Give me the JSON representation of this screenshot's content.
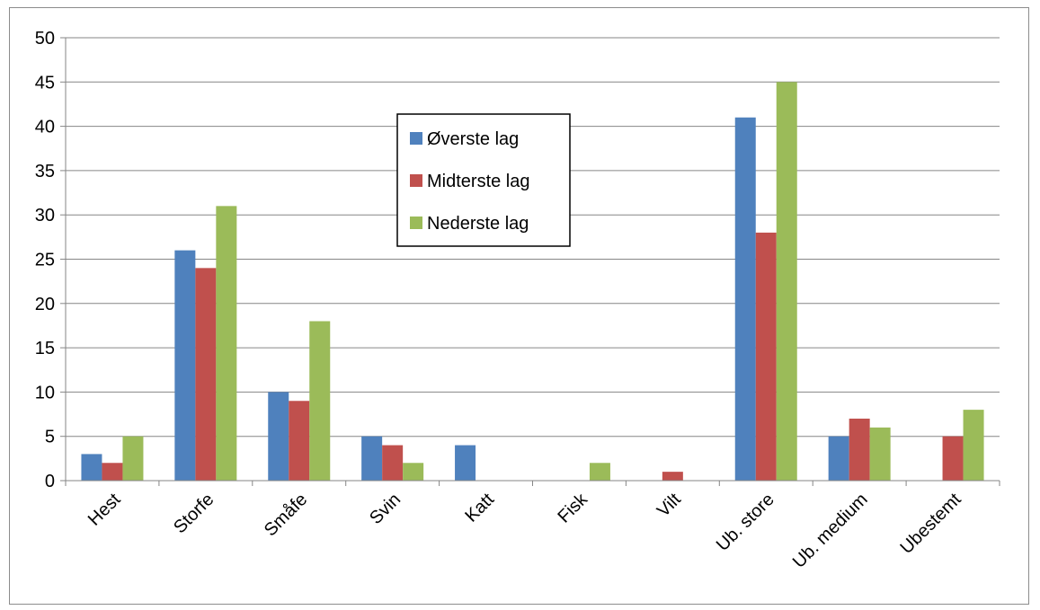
{
  "chart_data": {
    "type": "bar",
    "categories": [
      "Hest",
      "Storfe",
      "Småfe",
      "Svin",
      "Katt",
      "Fisk",
      "Vilt",
      "Ub. store",
      "Ub. medium",
      "Ubestemt"
    ],
    "series": [
      {
        "name": "Øverste lag",
        "color": "#4f81bd",
        "values": [
          3,
          26,
          10,
          5,
          4,
          0,
          0,
          41,
          5,
          0
        ]
      },
      {
        "name": "Midterste lag",
        "color": "#c0504d",
        "values": [
          2,
          24,
          9,
          4,
          0,
          0,
          1,
          28,
          7,
          5
        ]
      },
      {
        "name": "Nederste lag",
        "color": "#9bbb59",
        "values": [
          5,
          31,
          18,
          2,
          0,
          2,
          0,
          45,
          6,
          8
        ]
      }
    ],
    "ylim": [
      0,
      50
    ],
    "yticks": [
      "0",
      "5",
      "10",
      "15",
      "20",
      "25",
      "30",
      "35",
      "40",
      "45",
      "50"
    ],
    "grid": true,
    "legend_position": "inside-center"
  }
}
